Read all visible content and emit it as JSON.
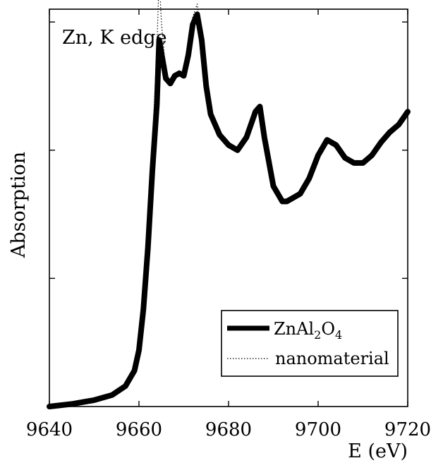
{
  "chart_data": {
    "type": "line",
    "title": "",
    "annotation": "Zn, K edge",
    "xlabel": "E (eV)",
    "ylabel": "Absorption",
    "xlim": [
      9640,
      9720
    ],
    "ylim": [
      0,
      1.55
    ],
    "xticks": [
      9640,
      9660,
      9680,
      9700,
      9720
    ],
    "yticks_unlabeled": [
      0.5,
      1.0,
      1.5
    ],
    "grid": false,
    "legend_position": "bottom-right",
    "series": [
      {
        "name": "ZnAl2O4",
        "legend_parts": [
          "ZnAl",
          "2",
          "O",
          "4"
        ],
        "style": "thick-solid",
        "color": "#000000",
        "x": [
          9640,
          9645,
          9650,
          9654,
          9657,
          9659,
          9660,
          9661,
          9662,
          9663,
          9664,
          9664.5,
          9665,
          9666,
          9667,
          9668,
          9669,
          9670,
          9671,
          9672,
          9673,
          9674,
          9675,
          9676,
          9678,
          9680,
          9682,
          9684,
          9686,
          9687,
          9688,
          9690,
          9692,
          9693,
          9694,
          9696,
          9698,
          9700,
          9702,
          9704,
          9706,
          9708,
          9710,
          9712,
          9714,
          9716,
          9718,
          9720
        ],
        "y": [
          0.0,
          0.01,
          0.025,
          0.045,
          0.08,
          0.14,
          0.22,
          0.38,
          0.62,
          0.92,
          1.18,
          1.43,
          1.38,
          1.28,
          1.26,
          1.29,
          1.3,
          1.29,
          1.37,
          1.49,
          1.53,
          1.43,
          1.25,
          1.14,
          1.06,
          1.02,
          1.0,
          1.05,
          1.15,
          1.17,
          1.05,
          0.86,
          0.8,
          0.8,
          0.81,
          0.83,
          0.89,
          0.98,
          1.04,
          1.02,
          0.97,
          0.95,
          0.95,
          0.98,
          1.03,
          1.07,
          1.1,
          1.15
        ]
      },
      {
        "name": "nanomaterial",
        "style": "dotted",
        "color": "#000000",
        "x": [
          9640,
          9645,
          9650,
          9654,
          9657,
          9659,
          9660,
          9661,
          9662,
          9663,
          9664,
          9664.5,
          9665,
          9666,
          9667,
          9668,
          9669,
          9670,
          9671,
          9672,
          9673,
          9674,
          9675,
          9676,
          9678,
          9680,
          9682,
          9684,
          9686,
          9687,
          9688,
          9690,
          9692,
          9693,
          9694,
          9696,
          9698,
          9700,
          9702,
          9704,
          9706,
          9708,
          9710,
          9712,
          9714,
          9716,
          9718,
          9720
        ],
        "y": [
          0.0,
          0.01,
          0.025,
          0.045,
          0.08,
          0.14,
          0.22,
          0.38,
          0.64,
          1.02,
          1.4,
          1.68,
          1.5,
          1.3,
          1.27,
          1.3,
          1.3,
          1.29,
          1.38,
          1.52,
          1.57,
          1.45,
          1.25,
          1.13,
          1.05,
          1.01,
          1.0,
          1.05,
          1.16,
          1.17,
          1.05,
          0.86,
          0.8,
          0.8,
          0.81,
          0.83,
          0.9,
          0.99,
          1.05,
          1.02,
          0.97,
          0.95,
          0.96,
          0.99,
          1.03,
          1.07,
          1.1,
          1.15
        ]
      }
    ]
  }
}
